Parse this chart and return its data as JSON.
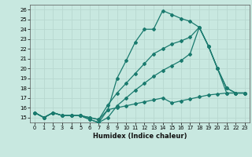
{
  "xlabel": "Humidex (Indice chaleur)",
  "xlim": [
    -0.5,
    23.5
  ],
  "ylim": [
    14.5,
    26.5
  ],
  "yticks": [
    15,
    16,
    17,
    18,
    19,
    20,
    21,
    22,
    23,
    24,
    25,
    26
  ],
  "xticks": [
    0,
    1,
    2,
    3,
    4,
    5,
    6,
    7,
    8,
    9,
    10,
    11,
    12,
    13,
    14,
    15,
    16,
    17,
    18,
    19,
    20,
    21,
    22,
    23
  ],
  "bg_color": "#c8e8e0",
  "grid_color": "#e8f4f0",
  "line_color": "#1a7a6e",
  "lines": [
    {
      "x": [
        0,
        1,
        2,
        3,
        4,
        5,
        6,
        7,
        8,
        9,
        10,
        11,
        12,
        13,
        14,
        15,
        16,
        17,
        18,
        19,
        20,
        21,
        22,
        23
      ],
      "y": [
        15.5,
        15.0,
        15.5,
        15.2,
        15.2,
        15.2,
        15.0,
        14.8,
        15.8,
        19.0,
        20.8,
        22.7,
        24.0,
        24.0,
        25.9,
        25.5,
        25.1,
        24.8,
        24.2,
        22.3,
        20.0,
        18.0,
        17.5,
        17.5
      ]
    },
    {
      "x": [
        0,
        1,
        2,
        3,
        4,
        5,
        6,
        7,
        8,
        9,
        10,
        11,
        12,
        13,
        14,
        15,
        16,
        17,
        18,
        19,
        20,
        21,
        22,
        23
      ],
      "y": [
        15.5,
        15.0,
        15.5,
        15.2,
        15.2,
        15.2,
        15.0,
        14.8,
        16.3,
        17.5,
        18.5,
        19.5,
        20.5,
        21.5,
        22.0,
        22.5,
        22.8,
        23.2,
        24.2,
        22.3,
        20.0,
        18.0,
        17.5,
        17.5
      ]
    },
    {
      "x": [
        0,
        1,
        2,
        3,
        4,
        5,
        6,
        7,
        8,
        9,
        10,
        11,
        12,
        13,
        14,
        15,
        16,
        17,
        18,
        19,
        20,
        21,
        22,
        23
      ],
      "y": [
        15.5,
        15.0,
        15.5,
        15.2,
        15.2,
        15.2,
        14.8,
        14.5,
        15.0,
        16.2,
        17.0,
        17.8,
        18.5,
        19.2,
        19.8,
        20.3,
        20.8,
        21.5,
        24.2,
        22.3,
        20.0,
        17.5,
        17.5,
        17.5
      ]
    },
    {
      "x": [
        0,
        1,
        2,
        3,
        4,
        5,
        6,
        7,
        8,
        9,
        10,
        11,
        12,
        13,
        14,
        15,
        16,
        17,
        18,
        19,
        20,
        21,
        22,
        23
      ],
      "y": [
        15.5,
        15.0,
        15.5,
        15.2,
        15.2,
        15.2,
        14.8,
        14.5,
        15.8,
        16.0,
        16.2,
        16.4,
        16.6,
        16.8,
        17.0,
        16.5,
        16.7,
        16.9,
        17.1,
        17.3,
        17.4,
        17.5,
        17.5,
        17.5
      ]
    }
  ]
}
